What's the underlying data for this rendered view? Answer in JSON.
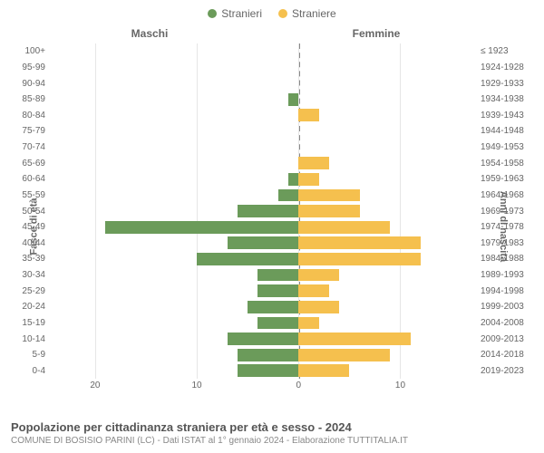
{
  "legend": {
    "stranieri": "Stranieri",
    "straniere": "Straniere"
  },
  "male_header": "Maschi",
  "female_header": "Femmine",
  "axis_left_label": "Fasce di età",
  "axis_right_label": "Anni di nascita",
  "xticks": [
    -20,
    -10,
    0,
    10
  ],
  "xtick_labels": [
    "20",
    "10",
    "0",
    "10"
  ],
  "xlim": [
    -24,
    17
  ],
  "age_bands": [
    "100+",
    "95-99",
    "90-94",
    "85-89",
    "80-84",
    "75-79",
    "70-74",
    "65-69",
    "60-64",
    "55-59",
    "50-54",
    "45-49",
    "40-44",
    "35-39",
    "30-34",
    "25-29",
    "20-24",
    "15-19",
    "10-14",
    "5-9",
    "0-4"
  ],
  "birth_years": [
    "≤ 1923",
    "1924-1928",
    "1929-1933",
    "1934-1938",
    "1939-1943",
    "1944-1948",
    "1949-1953",
    "1954-1958",
    "1959-1963",
    "1964-1968",
    "1969-1973",
    "1974-1978",
    "1979-1983",
    "1984-1988",
    "1989-1993",
    "1994-1998",
    "1999-2003",
    "2004-2008",
    "2009-2013",
    "2014-2018",
    "2019-2023"
  ],
  "male": [
    0,
    0,
    0,
    1,
    0,
    0,
    0,
    0,
    1,
    2,
    6,
    19,
    7,
    10,
    4,
    4,
    5,
    4,
    7,
    6,
    6
  ],
  "female": [
    0,
    0,
    0,
    0,
    2,
    0,
    0,
    3,
    2,
    6,
    6,
    9,
    12,
    12,
    4,
    3,
    4,
    2,
    11,
    9,
    5
  ],
  "colors": {
    "male_bar": "#6b9b5a",
    "female_bar": "#f5c04e",
    "grid": "#e6e6e6",
    "text": "#666666",
    "background": "#ffffff"
  },
  "title": "Popolazione per cittadinanza straniera per età e sesso - 2024",
  "subtitle": "COMUNE DI BOSISIO PARINI (LC) - Dati ISTAT al 1° gennaio 2024 - Elaborazione TUTTITALIA.IT",
  "chart_type": "population-pyramid",
  "bar_height_ratio": 0.78,
  "font_sizes": {
    "legend": 12,
    "headers": 12,
    "ticks": 10,
    "axis_label": 11,
    "title": 13,
    "subtitle": 10
  }
}
